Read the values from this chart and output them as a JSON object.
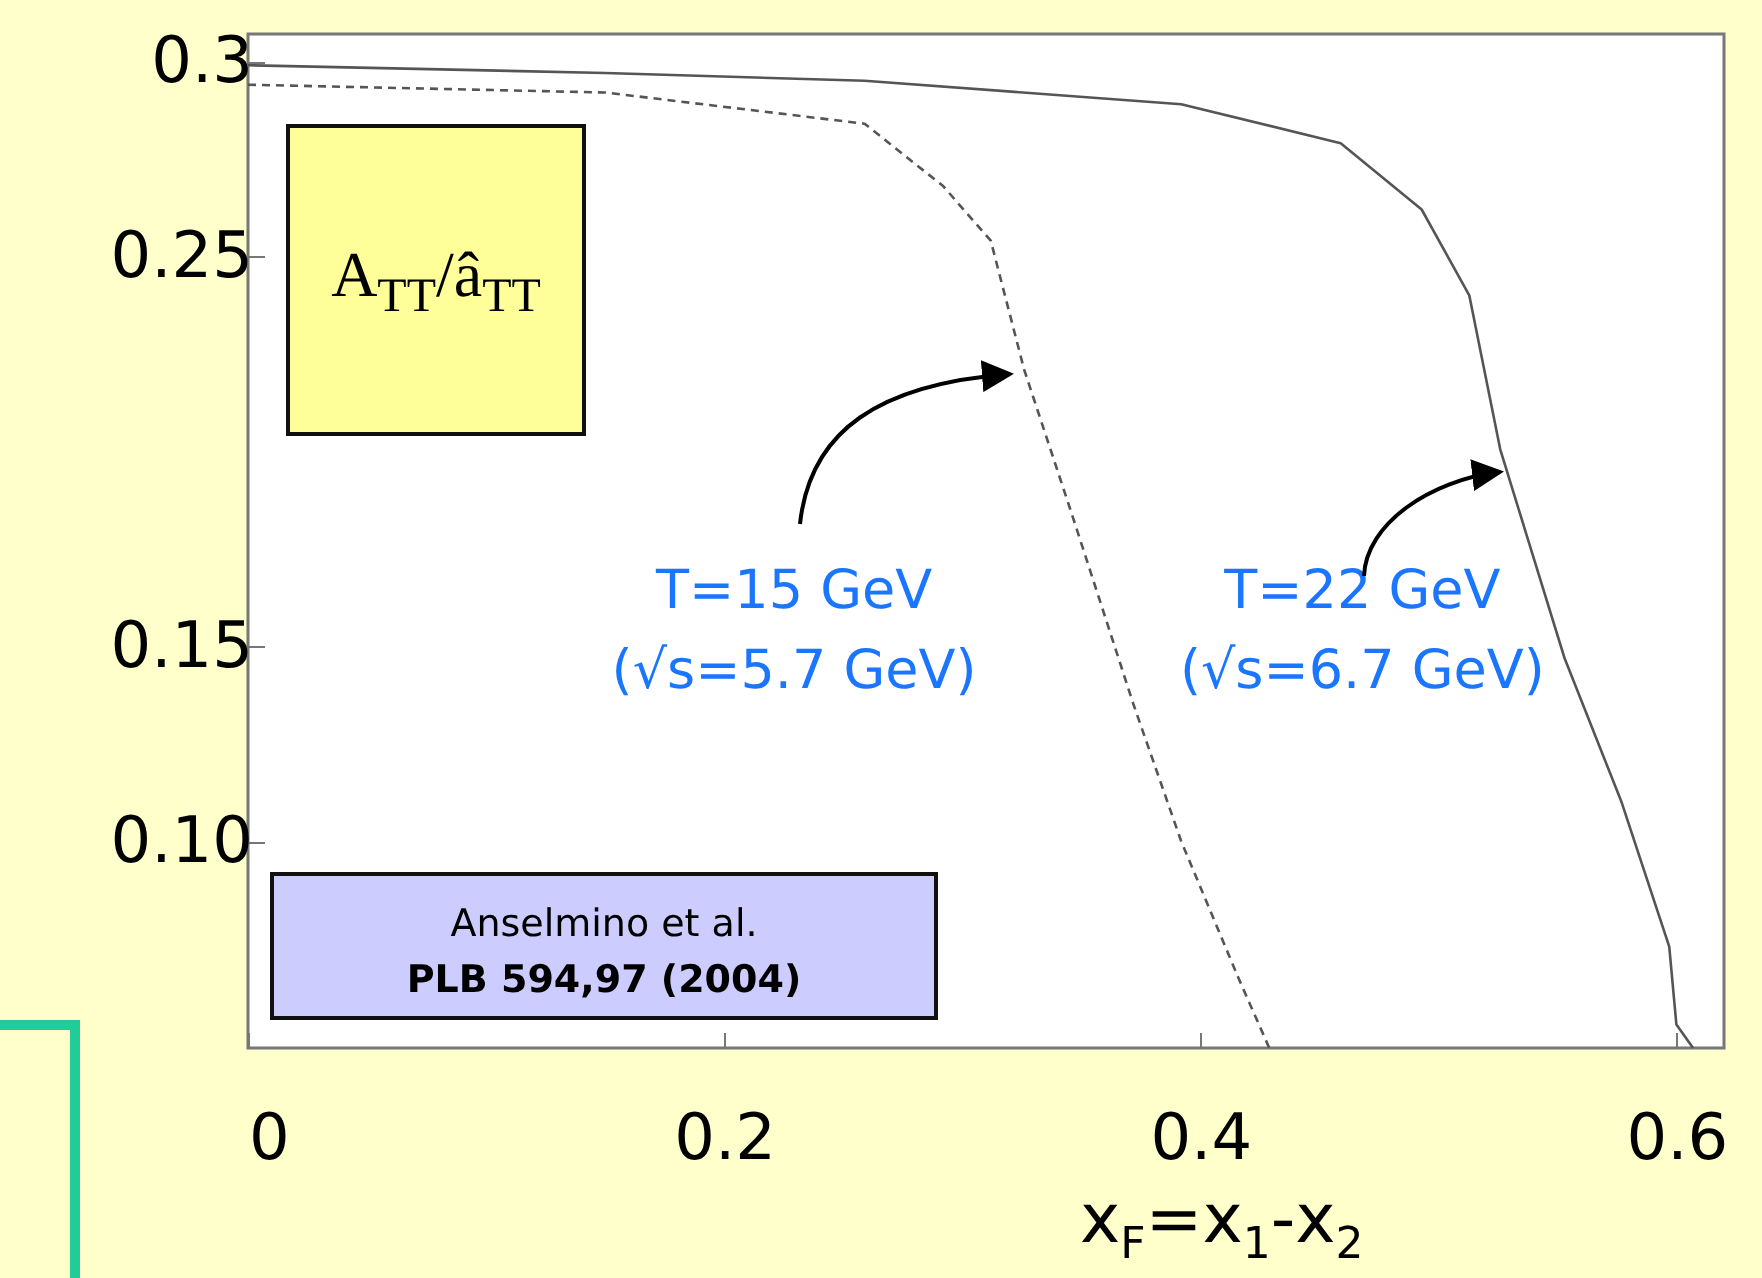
{
  "chart_data": {
    "type": "line",
    "ylabel": "A$_{TT}$/â$_{TT}$",
    "xlabel": "x$_{F}$=x$_{1}$-x$_{2}$",
    "xlim": [
      0,
      0.62
    ],
    "ylim": [
      0.047,
      0.307
    ],
    "xticks": [
      0,
      0.2,
      0.4,
      0.6
    ],
    "yticks": [
      0.3,
      0.25,
      0.15,
      {
        "value": 0.1,
        "label": "0.10"
      }
    ],
    "annotations": [
      "Anselmino et al.",
      "PLB 594,97 (2004)"
    ],
    "series": [
      {
        "name": "T=15 GeV\n(√s=5.7 GeV)",
        "color": "#555555",
        "line_style": "dashed",
        "x": [
          0,
          0.15,
          0.259,
          0.292,
          0.312,
          0.326,
          0.346,
          0.372,
          0.392,
          0.416,
          0.429
        ],
        "values": [
          0.294,
          0.292,
          0.284,
          0.268,
          0.254,
          0.221,
          0.184,
          0.135,
          0.1,
          0.065,
          0.047
        ]
      },
      {
        "name": "T=22 GeV\n(√s=6.7 GeV)",
        "color": "#555555",
        "line_style": "solid",
        "x": [
          0,
          0.15,
          0.259,
          0.392,
          0.459,
          0.493,
          0.513,
          0.526,
          0.553,
          0.577,
          0.597,
          0.6,
          0.607
        ],
        "values": [
          0.299,
          0.297,
          0.295,
          0.289,
          0.279,
          0.262,
          0.24,
          0.2005,
          0.147,
          0.11,
          0.073,
          0.053,
          0.047
        ]
      }
    ]
  }
}
